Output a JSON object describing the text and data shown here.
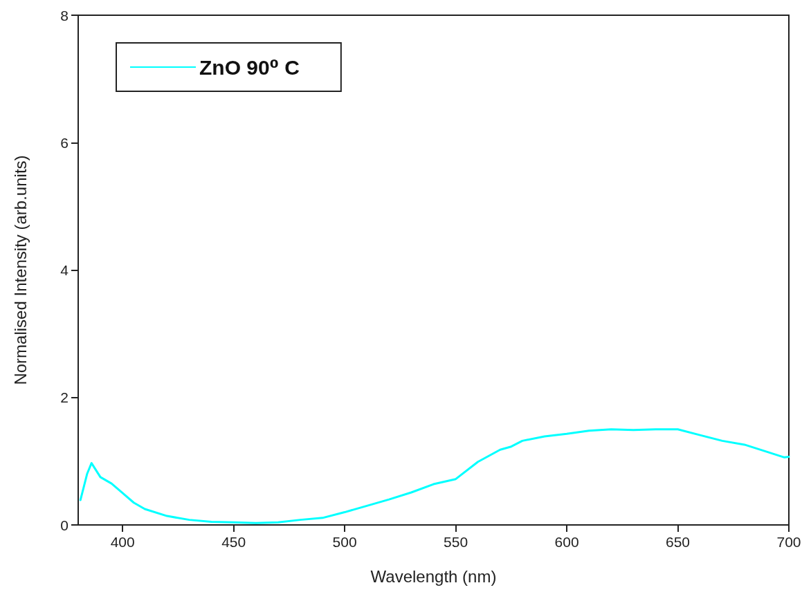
{
  "chart_data": {
    "type": "line",
    "xlabel": "Wavelength (nm)",
    "ylabel": "Normalised Intensity (arb.units)",
    "xlim": [
      380,
      700
    ],
    "xticks": [
      400,
      450,
      500,
      550,
      600,
      650,
      700
    ],
    "ylim": [
      0,
      8
    ],
    "yticks": [
      0,
      2,
      4,
      6,
      8
    ],
    "grid": false,
    "legend": "top left",
    "marker": "none",
    "line_style": "solid",
    "series": [
      {
        "name": "ZnO 90⁰ C",
        "color": "#00ffff",
        "x": [
          381,
          384,
          386,
          390,
          395,
          400,
          405,
          410,
          420,
          430,
          440,
          450,
          460,
          470,
          480,
          490,
          500,
          510,
          520,
          530,
          540,
          550,
          560,
          570,
          575,
          580,
          590,
          600,
          610,
          620,
          630,
          640,
          650,
          660,
          670,
          680,
          690,
          698,
          700
        ],
        "values": [
          0.39,
          0.8,
          0.97,
          0.75,
          0.65,
          0.5,
          0.35,
          0.25,
          0.14,
          0.08,
          0.05,
          0.04,
          0.03,
          0.04,
          0.08,
          0.11,
          0.2,
          0.3,
          0.4,
          0.51,
          0.64,
          0.72,
          0.99,
          1.18,
          1.23,
          1.32,
          1.39,
          1.43,
          1.48,
          1.5,
          1.49,
          1.5,
          1.5,
          1.41,
          1.32,
          1.26,
          1.15,
          1.06,
          1.07
        ]
      }
    ]
  }
}
